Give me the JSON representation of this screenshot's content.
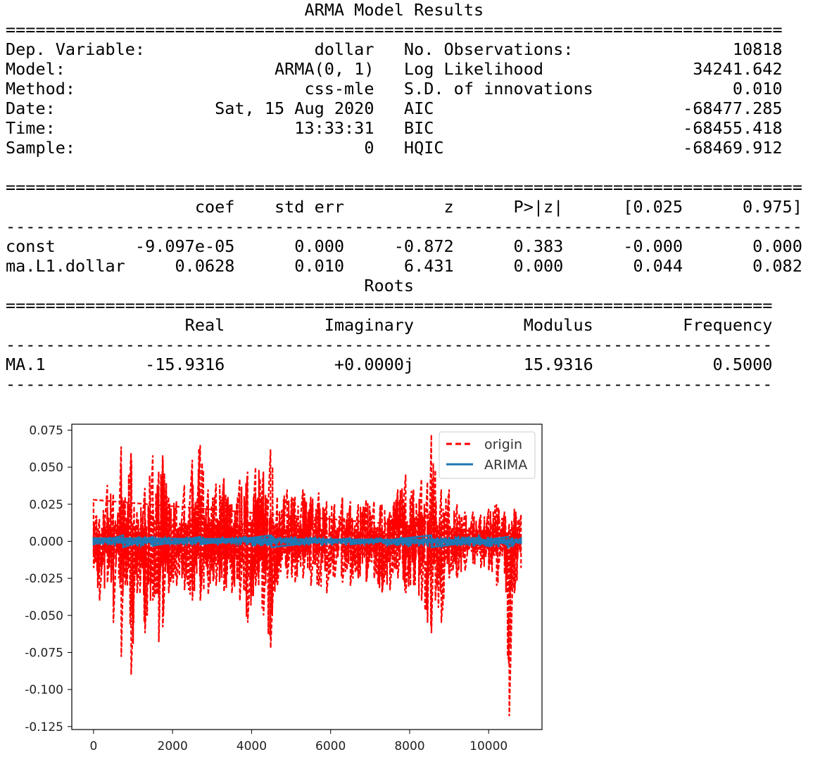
{
  "summary": {
    "title": "ARMA Model Results",
    "header_rows": [
      {
        "label1": "Dep. Variable:",
        "value1": "dollar",
        "label2": "No. Observations:",
        "value2": "10818"
      },
      {
        "label1": "Model:",
        "value1": "ARMA(0, 1)",
        "label2": "Log Likelihood",
        "value2": "34241.642"
      },
      {
        "label1": "Method:",
        "value1": "css-mle",
        "label2": "S.D. of innovations",
        "value2": "0.010"
      },
      {
        "label1": "Date:",
        "value1": "Sat, 15 Aug 2020",
        "label2": "AIC",
        "value2": "-68477.285"
      },
      {
        "label1": "Time:",
        "value1": "13:33:31",
        "label2": "BIC",
        "value2": "-68455.418"
      },
      {
        "label1": "Sample:",
        "value1": "0",
        "label2": "HQIC",
        "value2": "-68469.912"
      }
    ],
    "coef_headers": [
      "",
      "coef",
      "std err",
      "z",
      "P>|z|",
      "[0.025",
      "0.975]"
    ],
    "coef_rows": [
      [
        "const",
        "-9.097e-05",
        "0.000",
        "-0.872",
        "0.383",
        "-0.000",
        "0.000"
      ],
      [
        "ma.L1.dollar",
        "0.0628",
        "0.010",
        "6.431",
        "0.000",
        "0.044",
        "0.082"
      ]
    ],
    "roots_title": "Roots",
    "roots_headers": [
      "",
      "Real",
      "Imaginary",
      "Modulus",
      "Frequency"
    ],
    "roots_rows": [
      [
        "MA.1",
        "-15.9316",
        "+0.0000j",
        "15.9316",
        "0.5000"
      ]
    ]
  },
  "chart_data": {
    "type": "line",
    "title": "",
    "xlabel": "",
    "ylabel": "",
    "xlim": [
      -550,
      11350
    ],
    "ylim": [
      -0.127,
      0.079
    ],
    "x_ticks": [
      0,
      2000,
      4000,
      6000,
      8000,
      10000
    ],
    "y_ticks": [
      0.075,
      0.05,
      0.025,
      0.0,
      -0.025,
      -0.05,
      -0.075,
      -0.1,
      -0.125
    ],
    "y_tick_labels": [
      "0.075",
      "0.050",
      "0.025",
      "0.000",
      "-0.025",
      "-0.050",
      "-0.075",
      "-0.100",
      "-0.125"
    ],
    "x_tick_labels": [
      "0",
      "2000",
      "4000",
      "6000",
      "8000",
      "10000"
    ],
    "legend_position": "top-right",
    "series": [
      {
        "name": "origin",
        "color": "#ff0000",
        "style": "dashed",
        "n_points": 10818,
        "envelope": [
          {
            "x": 0,
            "max": 0.028,
            "min": -0.018
          },
          {
            "x": 150,
            "max": 0.015,
            "min": -0.04
          },
          {
            "x": 350,
            "max": 0.038,
            "min": -0.028
          },
          {
            "x": 500,
            "max": 0.032,
            "min": -0.055
          },
          {
            "x": 620,
            "max": 0.02,
            "min": -0.008
          },
          {
            "x": 700,
            "max": 0.064,
            "min": -0.078
          },
          {
            "x": 800,
            "max": 0.03,
            "min": -0.03
          },
          {
            "x": 950,
            "max": 0.06,
            "min": -0.09
          },
          {
            "x": 1100,
            "max": 0.02,
            "min": -0.035
          },
          {
            "x": 1300,
            "max": 0.036,
            "min": -0.062
          },
          {
            "x": 1500,
            "max": 0.058,
            "min": -0.04
          },
          {
            "x": 1650,
            "max": 0.047,
            "min": -0.068
          },
          {
            "x": 1750,
            "max": 0.058,
            "min": -0.058
          },
          {
            "x": 1900,
            "max": 0.03,
            "min": -0.035
          },
          {
            "x": 2100,
            "max": 0.027,
            "min": -0.03
          },
          {
            "x": 2300,
            "max": 0.038,
            "min": -0.033
          },
          {
            "x": 2500,
            "max": 0.055,
            "min": -0.04
          },
          {
            "x": 2700,
            "max": 0.065,
            "min": -0.04
          },
          {
            "x": 2900,
            "max": 0.035,
            "min": -0.036
          },
          {
            "x": 3100,
            "max": 0.039,
            "min": -0.03
          },
          {
            "x": 3300,
            "max": 0.043,
            "min": -0.034
          },
          {
            "x": 3500,
            "max": 0.025,
            "min": -0.035
          },
          {
            "x": 3700,
            "max": 0.042,
            "min": -0.04
          },
          {
            "x": 3900,
            "max": 0.047,
            "min": -0.055
          },
          {
            "x": 4100,
            "max": 0.05,
            "min": -0.03
          },
          {
            "x": 4300,
            "max": 0.047,
            "min": -0.05
          },
          {
            "x": 4480,
            "max": 0.062,
            "min": -0.072
          },
          {
            "x": 4650,
            "max": 0.03,
            "min": -0.03
          },
          {
            "x": 4900,
            "max": 0.035,
            "min": -0.025
          },
          {
            "x": 5100,
            "max": 0.03,
            "min": -0.028
          },
          {
            "x": 5300,
            "max": 0.035,
            "min": -0.025
          },
          {
            "x": 5500,
            "max": 0.03,
            "min": -0.03
          },
          {
            "x": 5700,
            "max": 0.033,
            "min": -0.03
          },
          {
            "x": 5900,
            "max": 0.027,
            "min": -0.035
          },
          {
            "x": 6100,
            "max": 0.025,
            "min": -0.025
          },
          {
            "x": 6300,
            "max": 0.03,
            "min": -0.028
          },
          {
            "x": 6500,
            "max": 0.027,
            "min": -0.03
          },
          {
            "x": 6700,
            "max": 0.025,
            "min": -0.025
          },
          {
            "x": 6900,
            "max": 0.028,
            "min": -0.028
          },
          {
            "x": 7100,
            "max": 0.027,
            "min": -0.025
          },
          {
            "x": 7300,
            "max": 0.025,
            "min": -0.035
          },
          {
            "x": 7500,
            "max": 0.02,
            "min": -0.033
          },
          {
            "x": 7700,
            "max": 0.035,
            "min": -0.025
          },
          {
            "x": 7900,
            "max": 0.045,
            "min": -0.035
          },
          {
            "x": 8100,
            "max": 0.035,
            "min": -0.03
          },
          {
            "x": 8300,
            "max": 0.042,
            "min": -0.04
          },
          {
            "x": 8450,
            "max": 0.04,
            "min": -0.055
          },
          {
            "x": 8550,
            "max": 0.072,
            "min": -0.062
          },
          {
            "x": 8650,
            "max": 0.048,
            "min": -0.04
          },
          {
            "x": 8800,
            "max": 0.035,
            "min": -0.055
          },
          {
            "x": 9000,
            "max": 0.035,
            "min": -0.025
          },
          {
            "x": 9200,
            "max": 0.025,
            "min": -0.025
          },
          {
            "x": 9400,
            "max": 0.02,
            "min": -0.02
          },
          {
            "x": 9600,
            "max": 0.02,
            "min": -0.015
          },
          {
            "x": 9800,
            "max": 0.018,
            "min": -0.018
          },
          {
            "x": 10000,
            "max": 0.022,
            "min": -0.02
          },
          {
            "x": 10200,
            "max": 0.025,
            "min": -0.03
          },
          {
            "x": 10400,
            "max": 0.02,
            "min": -0.022
          },
          {
            "x": 10520,
            "max": 0.012,
            "min": -0.118
          },
          {
            "x": 10650,
            "max": 0.022,
            "min": -0.035
          },
          {
            "x": 10818,
            "max": 0.018,
            "min": -0.018
          }
        ]
      },
      {
        "name": "ARIMA",
        "color": "#1f77b4",
        "style": "solid",
        "n_points": 10818,
        "envelope": [
          {
            "x": 0,
            "max": 0.002,
            "min": -0.002
          },
          {
            "x": 750,
            "max": 0.004,
            "min": -0.004
          },
          {
            "x": 1500,
            "max": 0.003,
            "min": -0.003
          },
          {
            "x": 2700,
            "max": 0.003,
            "min": -0.002
          },
          {
            "x": 4500,
            "max": 0.004,
            "min": -0.004
          },
          {
            "x": 6500,
            "max": 0.002,
            "min": -0.002
          },
          {
            "x": 8550,
            "max": 0.004,
            "min": -0.004
          },
          {
            "x": 10500,
            "max": 0.003,
            "min": -0.004
          },
          {
            "x": 10818,
            "max": 0.002,
            "min": -0.002
          }
        ]
      }
    ]
  }
}
